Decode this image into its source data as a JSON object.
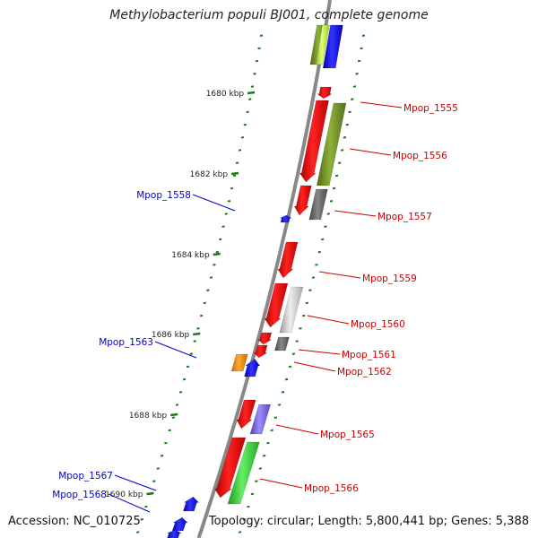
{
  "title": "Methylobacterium populi BJ001, complete genome",
  "footer": {
    "accession": "Accession: NC_010725",
    "topology": "Topology: circular; Length: 5,800,441 bp; Genes: 5,388"
  },
  "colors": {
    "backbone": "#888888",
    "tick": "#1a7a1a",
    "label_forward": "#cc0000",
    "label_reverse": "#0000cc"
  },
  "chart_data": {
    "type": "genome_map",
    "position_labels": [
      "1680 kbp",
      "1682 kbp",
      "1684 kbp",
      "1686 kbp",
      "1688 kbp",
      "1690 kbp"
    ],
    "genes": [
      {
        "label": "Mpop_1555",
        "strand": "forward",
        "color": "#ee1111"
      },
      {
        "label": "Mpop_1556",
        "strand": "forward",
        "color": "#6b8e23"
      },
      {
        "label": "Mpop_1557",
        "strand": "forward",
        "color": "#666666"
      },
      {
        "label": "Mpop_1558",
        "strand": "reverse",
        "color": "#0000ee"
      },
      {
        "label": "Mpop_1559",
        "strand": "forward",
        "color": "#ee1111"
      },
      {
        "label": "Mpop_1560",
        "strand": "forward",
        "color": "#c8c8c8"
      },
      {
        "label": "Mpop_1561",
        "strand": "forward",
        "color": "#666666"
      },
      {
        "label": "Mpop_1562",
        "strand": "forward",
        "color": "#ee1111"
      },
      {
        "label": "Mpop_1563",
        "strand": "reverse",
        "color": "#ff8c00"
      },
      {
        "label": "Mpop_1565",
        "strand": "forward",
        "color": "#7b68ee"
      },
      {
        "label": "Mpop_1566",
        "strand": "forward",
        "color": "#33cc33"
      },
      {
        "label": "Mpop_1567",
        "strand": "reverse",
        "color": "#0000ee"
      },
      {
        "label": "Mpop_1568",
        "strand": "reverse",
        "color": "#0000ee"
      }
    ]
  }
}
